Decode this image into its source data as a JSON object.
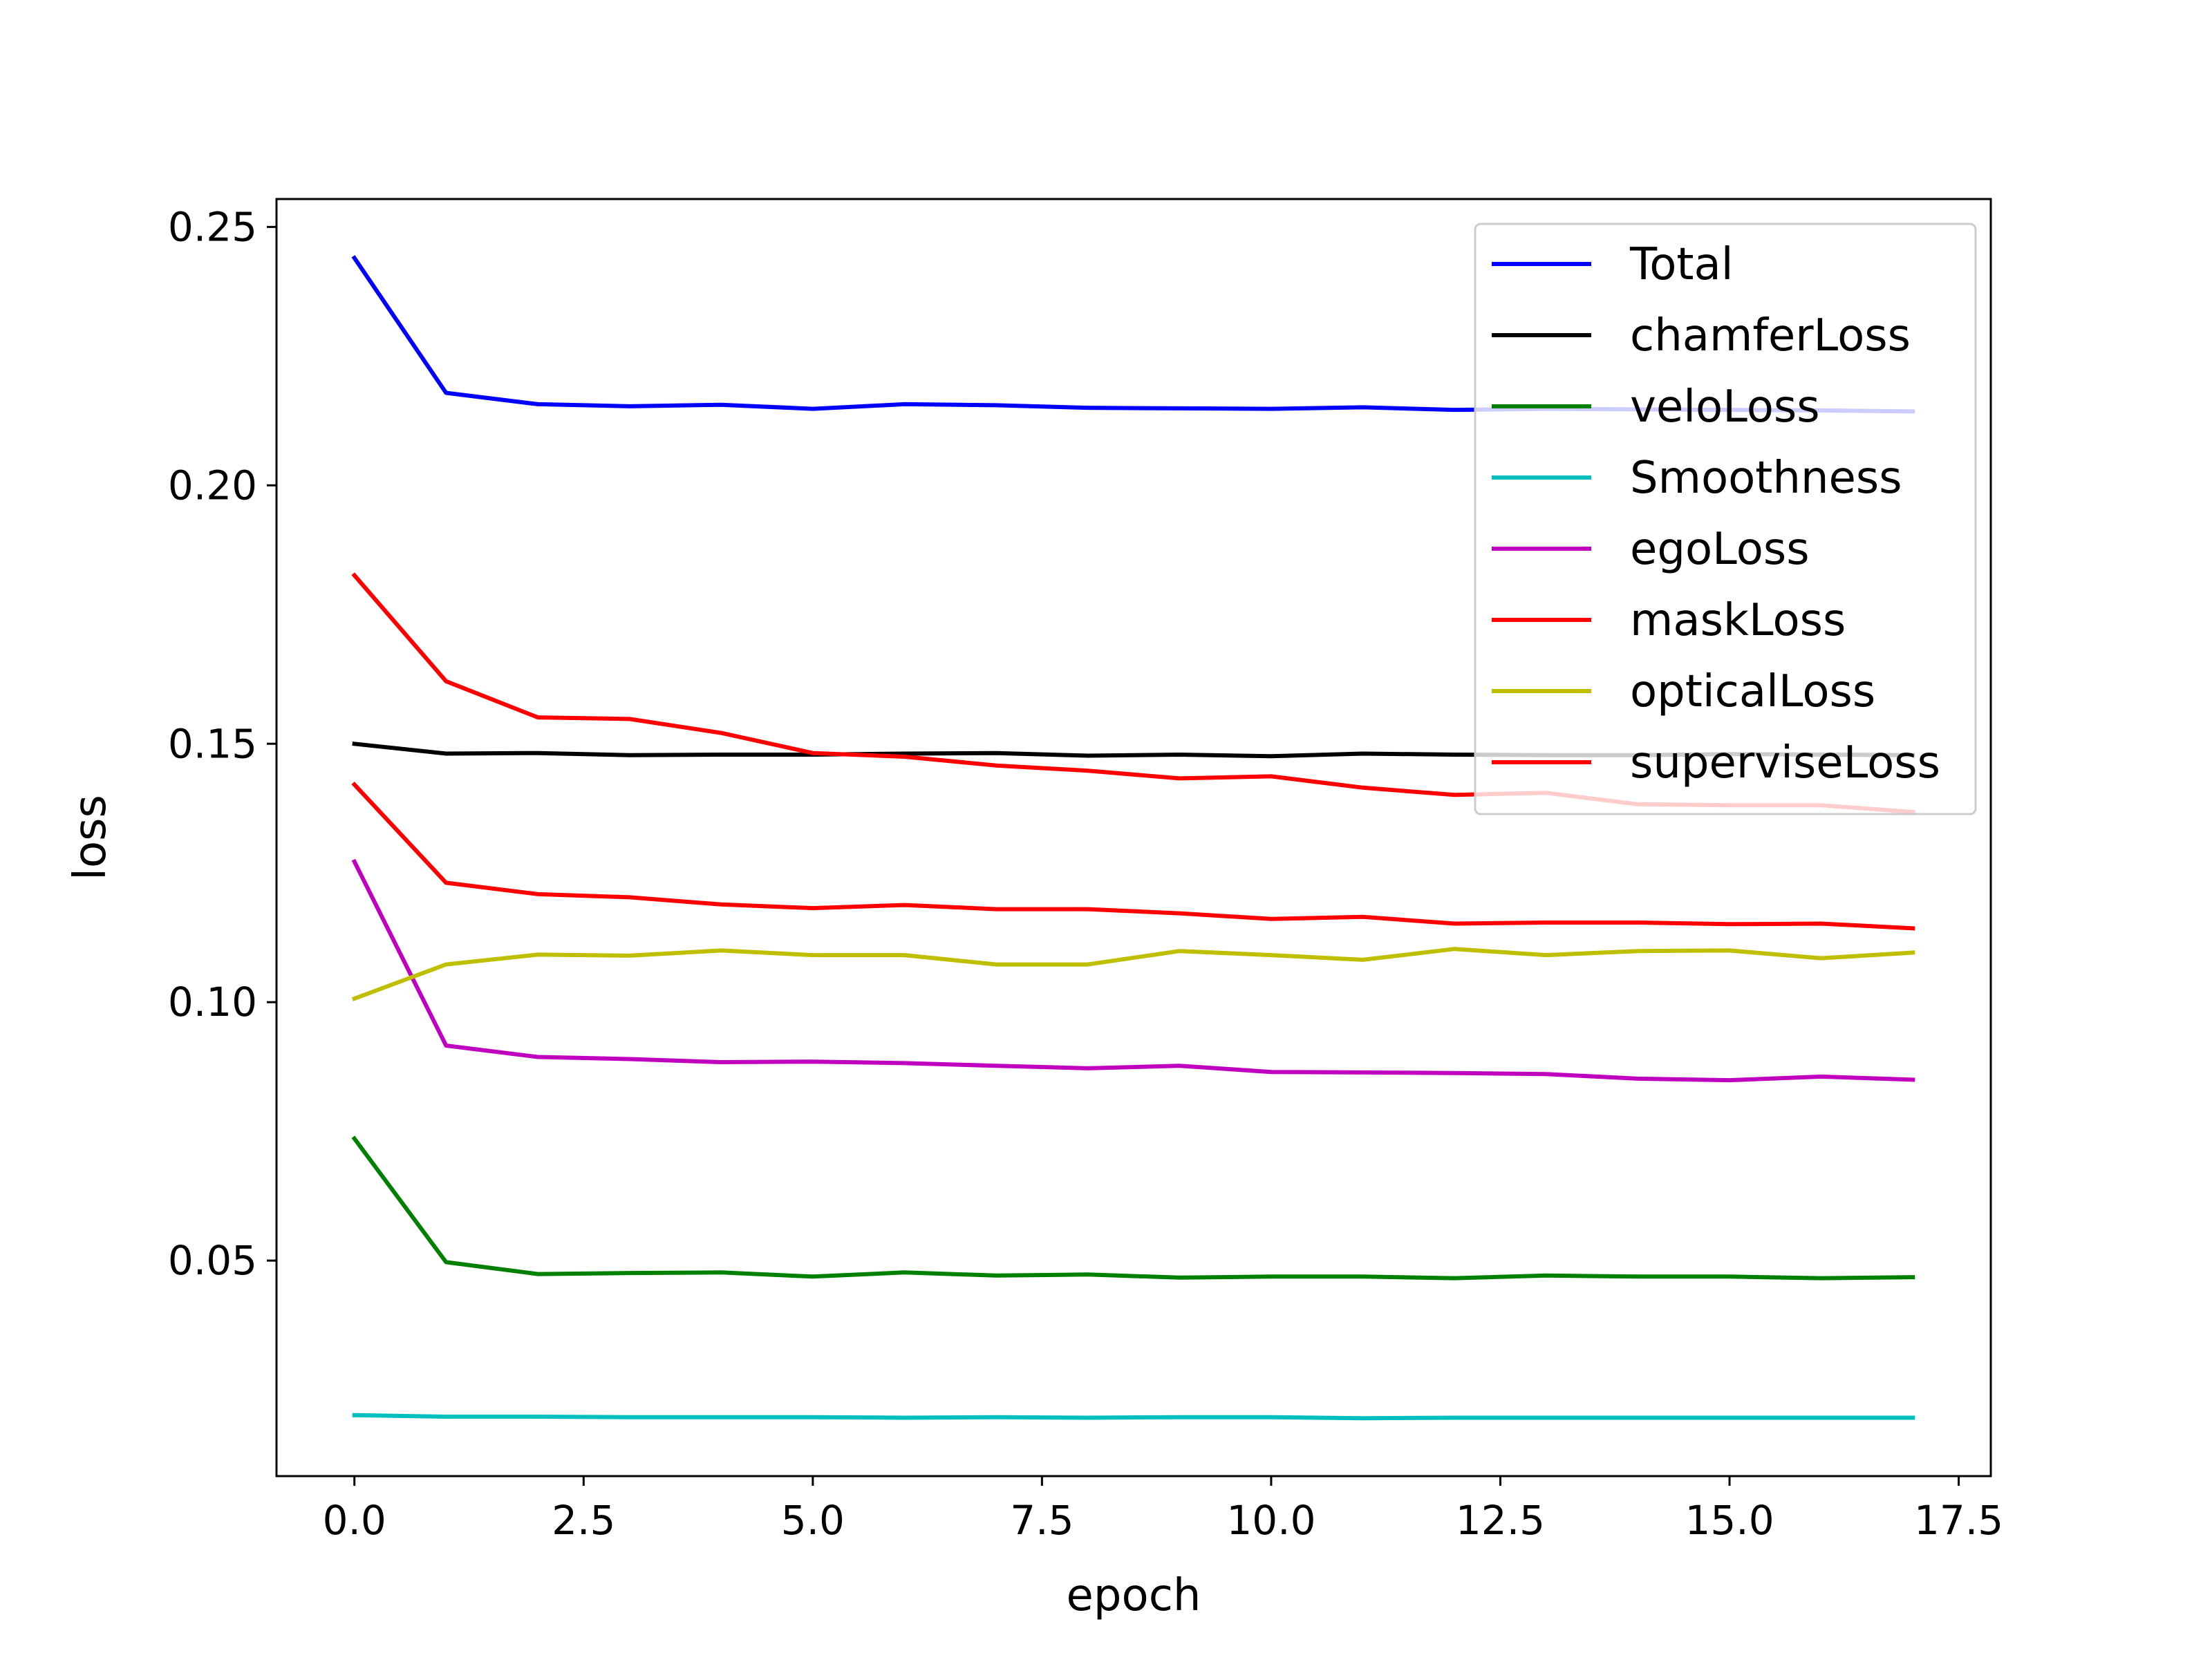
{
  "chart_data": {
    "type": "line",
    "title": "",
    "xlabel": "epoch",
    "ylabel": "loss",
    "xlim": [
      -0.85,
      17.85
    ],
    "ylim": [
      0.0083,
      0.2554
    ],
    "x_ticks": [
      0.0,
      2.5,
      5.0,
      7.5,
      10.0,
      12.5,
      15.0,
      17.5
    ],
    "x_tick_labels": [
      "0.0",
      "2.5",
      "5.0",
      "7.5",
      "10.0",
      "12.5",
      "15.0",
      "17.5"
    ],
    "y_ticks": [
      0.05,
      0.1,
      0.15,
      0.2,
      0.25
    ],
    "y_tick_labels": [
      "0.05",
      "0.10",
      "0.15",
      "0.20",
      "0.25"
    ],
    "grid": false,
    "legend_position": "top-right",
    "x": [
      0,
      1,
      2,
      3,
      4,
      5,
      6,
      7,
      8,
      9,
      10,
      11,
      12,
      13,
      14,
      15,
      16,
      17
    ],
    "series": [
      {
        "name": "Total",
        "color": "#0000ff",
        "values": [
          0.244,
          0.2179,
          0.2157,
          0.2153,
          0.2156,
          0.2148,
          0.2157,
          0.2155,
          0.215,
          0.2149,
          0.2148,
          0.2151,
          0.2146,
          0.2148,
          0.2147,
          0.2146,
          0.2145,
          0.2143
        ]
      },
      {
        "name": "chamferLoss",
        "color": "#000000",
        "values": [
          0.15,
          0.1481,
          0.1482,
          0.1478,
          0.1479,
          0.1479,
          0.1481,
          0.1482,
          0.1477,
          0.1479,
          0.1476,
          0.1481,
          0.1479,
          0.1478,
          0.1478,
          0.148,
          0.1479,
          0.1478
        ]
      },
      {
        "name": "veloLoss",
        "color": "#008000",
        "values": [
          0.0736,
          0.0497,
          0.0474,
          0.0476,
          0.0477,
          0.0469,
          0.0477,
          0.0471,
          0.0473,
          0.0467,
          0.0469,
          0.0469,
          0.0466,
          0.0471,
          0.0469,
          0.0469,
          0.0466,
          0.0468
        ]
      },
      {
        "name": "Smoothness",
        "color": "#00bfbf",
        "values": [
          0.0201,
          0.0198,
          0.0198,
          0.0197,
          0.0197,
          0.0197,
          0.0196,
          0.0197,
          0.0196,
          0.0197,
          0.0197,
          0.0195,
          0.0196,
          0.0196,
          0.0196,
          0.0196,
          0.0196,
          0.0196
        ]
      },
      {
        "name": "egoLoss",
        "color": "#bf00bf",
        "values": [
          0.1272,
          0.0916,
          0.0894,
          0.089,
          0.0884,
          0.0885,
          0.0882,
          0.0877,
          0.0872,
          0.0877,
          0.0865,
          0.0864,
          0.0863,
          0.0861,
          0.0852,
          0.0849,
          0.0856,
          0.085
        ]
      },
      {
        "name": "maskLoss",
        "color": "#ff0000",
        "values": [
          0.1826,
          0.1621,
          0.1551,
          0.1548,
          0.1521,
          0.1482,
          0.1475,
          0.1458,
          0.1448,
          0.1433,
          0.1437,
          0.1415,
          0.1401,
          0.1405,
          0.1383,
          0.1381,
          0.1381,
          0.1368
        ]
      },
      {
        "name": "opticalLoss",
        "color": "#bfbf00",
        "values": [
          0.1007,
          0.1073,
          0.1092,
          0.109,
          0.11,
          0.1091,
          0.1091,
          0.1073,
          0.1073,
          0.1099,
          0.1091,
          0.1082,
          0.1103,
          0.1091,
          0.1099,
          0.11,
          0.1085,
          0.1096
        ]
      },
      {
        "name": "superviseLoss",
        "color": "#ff0000",
        "values": [
          0.1421,
          0.1231,
          0.1209,
          0.1203,
          0.1189,
          0.1182,
          0.1188,
          0.118,
          0.118,
          0.1172,
          0.1161,
          0.1165,
          0.1152,
          0.1154,
          0.1154,
          0.1151,
          0.1152,
          0.1143
        ]
      }
    ]
  }
}
